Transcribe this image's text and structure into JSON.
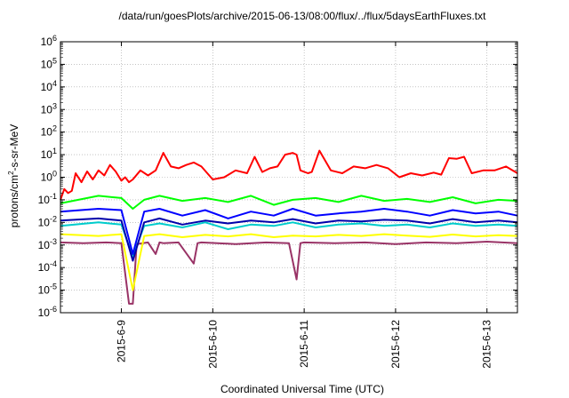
{
  "chart_data": {
    "type": "line",
    "title": "/data/run/goesPlots/archive/2015-06-13/08:00/flux/../flux/5daysEarthFluxes.txt",
    "xlabel": "Coordinated Universal Time (UTC)",
    "ylabel": {
      "prefix": "protons/cm",
      "sup": "2",
      "suffix": "-s-sr-MeV"
    },
    "yscale": "log",
    "ylim": [
      1e-06,
      1000000.0
    ],
    "y_ticks": [
      {
        "value": 1e-06,
        "base": "10",
        "exp": "-6"
      },
      {
        "value": 1e-05,
        "base": "10",
        "exp": "-5"
      },
      {
        "value": 0.0001,
        "base": "10",
        "exp": "-4"
      },
      {
        "value": 0.001,
        "base": "10",
        "exp": "-3"
      },
      {
        "value": 0.01,
        "base": "10",
        "exp": "-2"
      },
      {
        "value": 0.1,
        "base": "10",
        "exp": "-1"
      },
      {
        "value": 1,
        "base": "10",
        "exp": "0"
      },
      {
        "value": 10,
        "base": "10",
        "exp": "1"
      },
      {
        "value": 100,
        "base": "10",
        "exp": "2"
      },
      {
        "value": 1000,
        "base": "10",
        "exp": "3"
      },
      {
        "value": 10000,
        "base": "10",
        "exp": "4"
      },
      {
        "value": 100000,
        "base": "10",
        "exp": "5"
      },
      {
        "value": 1000000,
        "base": "10",
        "exp": "6"
      }
    ],
    "xlim": [
      "2015-06-08 08:00",
      "2015-06-13 08:00"
    ],
    "x_ticks": [
      {
        "value": "2015-06-09 00:00",
        "label": "2015-6-9"
      },
      {
        "value": "2015-06-10 00:00",
        "label": "2015-6-10"
      },
      {
        "value": "2015-06-11 00:00",
        "label": "2015-6-11"
      },
      {
        "value": "2015-06-12 00:00",
        "label": "2015-6-12"
      },
      {
        "value": "2015-06-13 00:00",
        "label": "2015-6-13"
      }
    ],
    "grid": true,
    "legend": "none",
    "series": [
      {
        "color": "#ff0000",
        "x": [
          "2015-06-08 08:00",
          "2015-06-08 09:00",
          "2015-06-08 10:00",
          "2015-06-08 11:00",
          "2015-06-08 12:00",
          "2015-06-08 13:30",
          "2015-06-08 15:00",
          "2015-06-08 16:30",
          "2015-06-08 18:00",
          "2015-06-08 19:30",
          "2015-06-08 21:00",
          "2015-06-08 22:30",
          "2015-06-09 00:00",
          "2015-06-09 01:00",
          "2015-06-09 02:00",
          "2015-06-09 03:00",
          "2015-06-09 05:00",
          "2015-06-09 07:00",
          "2015-06-09 09:00",
          "2015-06-09 11:00",
          "2015-06-09 13:00",
          "2015-06-09 15:00",
          "2015-06-09 17:00",
          "2015-06-09 19:00",
          "2015-06-09 21:00",
          "2015-06-10 00:00",
          "2015-06-10 03:00",
          "2015-06-10 06:00",
          "2015-06-10 09:00",
          "2015-06-10 11:00",
          "2015-06-10 13:00",
          "2015-06-10 15:00",
          "2015-06-10 17:00",
          "2015-06-10 19:00",
          "2015-06-10 21:00",
          "2015-06-10 22:00",
          "2015-06-10 23:00",
          "2015-06-11 01:00",
          "2015-06-11 02:00",
          "2015-06-11 04:00",
          "2015-06-11 07:00",
          "2015-06-11 10:00",
          "2015-06-11 13:00",
          "2015-06-11 16:00",
          "2015-06-11 19:00",
          "2015-06-11 22:00",
          "2015-06-12 01:00",
          "2015-06-12 04:00",
          "2015-06-12 07:00",
          "2015-06-12 10:00",
          "2015-06-12 12:00",
          "2015-06-12 14:00",
          "2015-06-12 16:00",
          "2015-06-12 18:00",
          "2015-06-12 20:00",
          "2015-06-12 23:00",
          "2015-06-13 02:00",
          "2015-06-13 05:00",
          "2015-06-13 08:00"
        ],
        "values": [
          0.1,
          0.3,
          0.2,
          0.25,
          1.5,
          0.6,
          1.8,
          0.8,
          2.0,
          1.2,
          3.5,
          1.8,
          0.7,
          1.0,
          0.6,
          0.8,
          2.0,
          1.2,
          2.0,
          12,
          3.0,
          2.5,
          3.5,
          4.5,
          3.0,
          0.8,
          1.0,
          2.0,
          1.5,
          8.0,
          1.7,
          2.5,
          3.0,
          10,
          12,
          10,
          2.0,
          1.5,
          1.7,
          15,
          2.0,
          1.5,
          3.0,
          2.5,
          3.5,
          2.5,
          1.0,
          1.5,
          1.2,
          1.6,
          1.3,
          7.0,
          6.5,
          8.0,
          1.5,
          2.0,
          2.0,
          3.0,
          1.5
        ]
      },
      {
        "color": "#00ff00",
        "x": [
          "2015-06-08 08:00",
          "2015-06-08 18:00",
          "2015-06-09 00:00",
          "2015-06-09 03:00",
          "2015-06-09 06:00",
          "2015-06-09 10:00",
          "2015-06-09 16:00",
          "2015-06-09 22:00",
          "2015-06-10 04:00",
          "2015-06-10 10:00",
          "2015-06-10 16:00",
          "2015-06-10 21:00",
          "2015-06-11 03:00",
          "2015-06-11 09:00",
          "2015-06-11 15:00",
          "2015-06-11 21:00",
          "2015-06-12 03:00",
          "2015-06-12 09:00",
          "2015-06-12 15:00",
          "2015-06-12 21:00",
          "2015-06-13 03:00",
          "2015-06-13 08:00"
        ],
        "values": [
          0.07,
          0.15,
          0.12,
          0.04,
          0.1,
          0.15,
          0.09,
          0.12,
          0.08,
          0.15,
          0.06,
          0.1,
          0.12,
          0.08,
          0.15,
          0.09,
          0.11,
          0.08,
          0.13,
          0.07,
          0.1,
          0.09
        ]
      },
      {
        "color": "#0000ff",
        "x": [
          "2015-06-08 08:00",
          "2015-06-08 18:00",
          "2015-06-09 00:00",
          "2015-06-09 03:00",
          "2015-06-09 06:00",
          "2015-06-09 10:00",
          "2015-06-09 16:00",
          "2015-06-09 22:00",
          "2015-06-10 04:00",
          "2015-06-10 10:00",
          "2015-06-10 16:00",
          "2015-06-10 21:00",
          "2015-06-11 03:00",
          "2015-06-11 09:00",
          "2015-06-11 15:00",
          "2015-06-11 21:00",
          "2015-06-12 03:00",
          "2015-06-12 09:00",
          "2015-06-12 15:00",
          "2015-06-12 21:00",
          "2015-06-13 03:00",
          "2015-06-13 08:00"
        ],
        "values": [
          0.03,
          0.04,
          0.035,
          0.0004,
          0.03,
          0.04,
          0.02,
          0.035,
          0.015,
          0.03,
          0.02,
          0.04,
          0.02,
          0.025,
          0.03,
          0.04,
          0.03,
          0.02,
          0.035,
          0.025,
          0.03,
          0.02
        ]
      },
      {
        "color": "#00cccc",
        "x": [
          "2015-06-08 08:00",
          "2015-06-08 18:00",
          "2015-06-09 00:00",
          "2015-06-09 03:00",
          "2015-06-09 06:00",
          "2015-06-09 10:00",
          "2015-06-09 16:00",
          "2015-06-09 22:00",
          "2015-06-10 04:00",
          "2015-06-10 10:00",
          "2015-06-10 16:00",
          "2015-06-10 21:00",
          "2015-06-11 03:00",
          "2015-06-11 09:00",
          "2015-06-11 15:00",
          "2015-06-11 21:00",
          "2015-06-12 03:00",
          "2015-06-12 09:00",
          "2015-06-12 15:00",
          "2015-06-12 21:00",
          "2015-06-13 03:00",
          "2015-06-13 08:00"
        ],
        "values": [
          0.007,
          0.01,
          0.008,
          0.0003,
          0.007,
          0.009,
          0.006,
          0.01,
          0.005,
          0.008,
          0.007,
          0.01,
          0.006,
          0.008,
          0.009,
          0.007,
          0.008,
          0.006,
          0.009,
          0.007,
          0.008,
          0.007
        ]
      },
      {
        "color": "#0000aa",
        "x": [
          "2015-06-08 08:00",
          "2015-06-08 18:00",
          "2015-06-09 00:00",
          "2015-06-09 03:00",
          "2015-06-09 06:00",
          "2015-06-09 10:00",
          "2015-06-09 16:00",
          "2015-06-09 22:00",
          "2015-06-10 04:00",
          "2015-06-10 10:00",
          "2015-06-10 16:00",
          "2015-06-10 21:00",
          "2015-06-11 03:00",
          "2015-06-11 09:00",
          "2015-06-11 15:00",
          "2015-06-11 21:00",
          "2015-06-12 03:00",
          "2015-06-12 09:00",
          "2015-06-12 15:00",
          "2015-06-12 21:00",
          "2015-06-13 03:00",
          "2015-06-13 08:00"
        ],
        "values": [
          0.012,
          0.015,
          0.012,
          0.0002,
          0.01,
          0.015,
          0.008,
          0.012,
          0.009,
          0.012,
          0.01,
          0.014,
          0.009,
          0.012,
          0.011,
          0.013,
          0.012,
          0.009,
          0.014,
          0.01,
          0.012,
          0.01
        ]
      },
      {
        "color": "#ffff00",
        "x": [
          "2015-06-08 08:00",
          "2015-06-08 18:00",
          "2015-06-09 00:00",
          "2015-06-09 03:00",
          "2015-06-09 06:00",
          "2015-06-09 10:00",
          "2015-06-09 16:00",
          "2015-06-09 22:00",
          "2015-06-10 04:00",
          "2015-06-10 10:00",
          "2015-06-10 16:00",
          "2015-06-10 21:00",
          "2015-06-11 03:00",
          "2015-06-11 09:00",
          "2015-06-11 15:00",
          "2015-06-11 21:00",
          "2015-06-12 03:00",
          "2015-06-12 09:00",
          "2015-06-12 15:00",
          "2015-06-12 21:00",
          "2015-06-13 03:00",
          "2015-06-13 08:00"
        ],
        "values": [
          0.003,
          0.0025,
          0.003,
          1e-05,
          0.0025,
          0.003,
          0.0022,
          0.0028,
          0.0024,
          0.003,
          0.0022,
          0.0026,
          0.0024,
          0.0028,
          0.0025,
          0.003,
          0.0026,
          0.0023,
          0.0029,
          0.0024,
          0.0027,
          0.0025
        ]
      },
      {
        "color": "#993366",
        "x": [
          "2015-06-08 08:00",
          "2015-06-08 14:00",
          "2015-06-08 20:00",
          "2015-06-09 00:00",
          "2015-06-09 02:00",
          "2015-06-09 03:00",
          "2015-06-09 04:00",
          "2015-06-09 07:00",
          "2015-06-09 09:00",
          "2015-06-09 10:00",
          "2015-06-09 11:00",
          "2015-06-09 15:00",
          "2015-06-09 19:00",
          "2015-06-09 20:00",
          "2015-06-09 21:00",
          "2015-06-10 06:00",
          "2015-06-10 14:00",
          "2015-06-10 20:00",
          "2015-06-10 22:00",
          "2015-06-10 23:00",
          "2015-06-11 00:00",
          "2015-06-11 08:00",
          "2015-06-11 16:00",
          "2015-06-12 00:00",
          "2015-06-12 08:00",
          "2015-06-12 16:00",
          "2015-06-13 00:00",
          "2015-06-13 08:00"
        ],
        "values": [
          0.0013,
          0.0012,
          0.0013,
          0.0012,
          2.5e-06,
          2.5e-06,
          0.0011,
          0.0013,
          0.0004,
          0.0013,
          0.0012,
          0.0013,
          0.00015,
          0.0012,
          0.0013,
          0.0011,
          0.0013,
          0.0012,
          3e-05,
          0.0012,
          0.0013,
          0.0012,
          0.0013,
          0.0011,
          0.0013,
          0.0012,
          0.0014,
          0.0012
        ]
      }
    ]
  }
}
